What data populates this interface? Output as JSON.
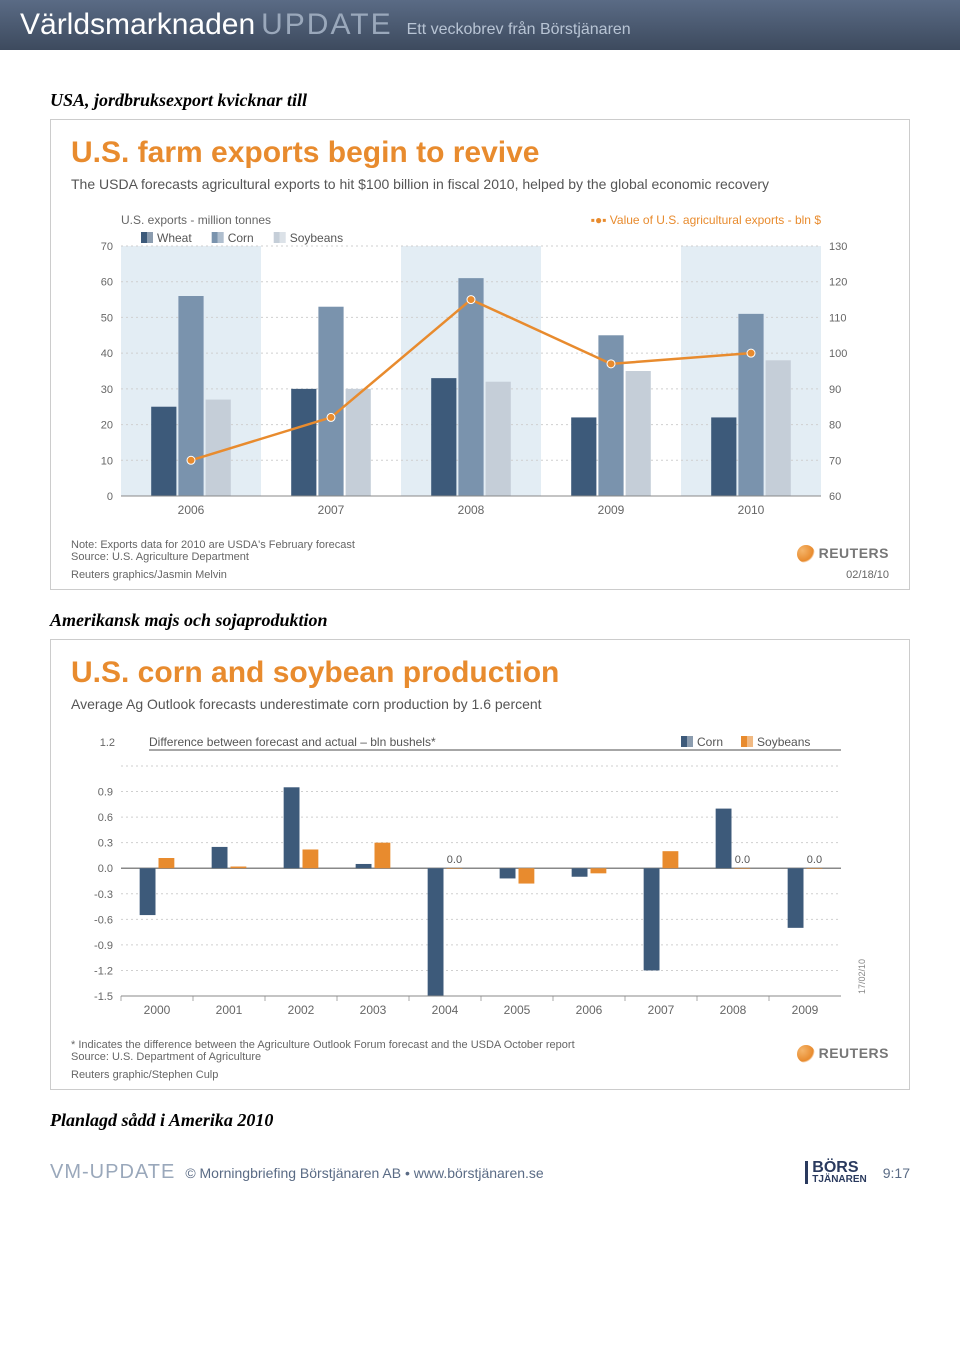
{
  "header": {
    "main": "Världsmarknaden",
    "update": "UPDATE",
    "sub": "Ett veckobrev från Börstjänaren"
  },
  "caption1": "USA, jordbruksexport kvicknar till",
  "chart1": {
    "title": "U.S. farm exports begin to revive",
    "subtitle": "The USDA forecasts agricultural exports to hit $100 billion in fiscal 2010, helped by the global economic recovery",
    "left_axis_title": "U.S. exports - million tonnes",
    "right_axis_title": "Value of U.S. agricultural exports - bln $",
    "legend": {
      "wheat": "Wheat",
      "corn": "Corn",
      "soybeans": "Soybeans"
    },
    "colors": {
      "wheat": "#3d5a7a",
      "corn": "#7a93ad",
      "soybeans": "#c5ced8",
      "line": "#e88b2e",
      "grid": "#cfcfcf",
      "band": "#e3edf4",
      "bg": "#ffffff",
      "axis_text": "#666666"
    },
    "left_axis": {
      "min": 0,
      "max": 70,
      "step": 10
    },
    "right_axis": {
      "min": 60,
      "max": 130,
      "step": 10
    },
    "years": [
      "2006",
      "2007",
      "2008",
      "2009",
      "2010"
    ],
    "wheat": [
      25,
      30,
      33,
      22,
      22
    ],
    "corn": [
      56,
      53,
      61,
      45,
      51
    ],
    "soybeans": [
      27,
      30,
      32,
      35,
      38
    ],
    "line_values": [
      70,
      82,
      115,
      97,
      100
    ],
    "bands_alternate": true,
    "note1": "Note: Exports data for 2010 are USDA's February forecast",
    "note2": "Source: U.S. Agriculture Department",
    "credit": "Reuters graphics/Jasmin Melvin",
    "date": "02/18/10",
    "brand": "REUTERS"
  },
  "caption2": "Amerikansk majs och sojaproduktion",
  "chart2": {
    "title": "U.S. corn and soybean production",
    "subtitle": "Average Ag Outlook forecasts underestimate corn production by 1.6 percent",
    "chart_label": "Difference between forecast and actual – bln bushels*",
    "legend": {
      "corn": "Corn",
      "soybeans": "Soybeans"
    },
    "colors": {
      "corn": "#3d5a7a",
      "soybeans": "#e88b2e",
      "grid": "#cfcfcf",
      "zero": "#888888",
      "bg": "#ffffff",
      "axis_text": "#666666"
    },
    "y_axis": {
      "min": -1.5,
      "max": 1.2,
      "step": 0.3
    },
    "years": [
      "2000",
      "2001",
      "2002",
      "2003",
      "2004",
      "2005",
      "2006",
      "2007",
      "2008",
      "2009"
    ],
    "corn": [
      -0.55,
      0.25,
      0.95,
      0.05,
      -1.5,
      -0.12,
      -0.1,
      -1.2,
      0.7,
      -0.7
    ],
    "soybeans": [
      0.12,
      0.02,
      0.22,
      0.3,
      0.0,
      -0.18,
      -0.06,
      0.2,
      0.0,
      0.0
    ],
    "soy_labels": {
      "4": "0.0",
      "8": "0.0",
      "9": "0.0"
    },
    "footnote1": "* Indicates the difference between the Agriculture Outlook Forum forecast and the USDA October report",
    "footnote2": "Source: U.S. Department of Agriculture",
    "credit": "Reuters graphic/Stephen Culp",
    "side_date": "17/02/10",
    "brand": "REUTERS"
  },
  "caption3": "Planlagd sådd i Amerika 2010",
  "footer": {
    "vm": "VM-UPDATE",
    "text": "© Morningbriefing Börstjänaren AB • www.börstjänaren.se",
    "logo_top": "BÖRS",
    "logo_bottom": "TJÄNAREN",
    "page": "9:17"
  }
}
